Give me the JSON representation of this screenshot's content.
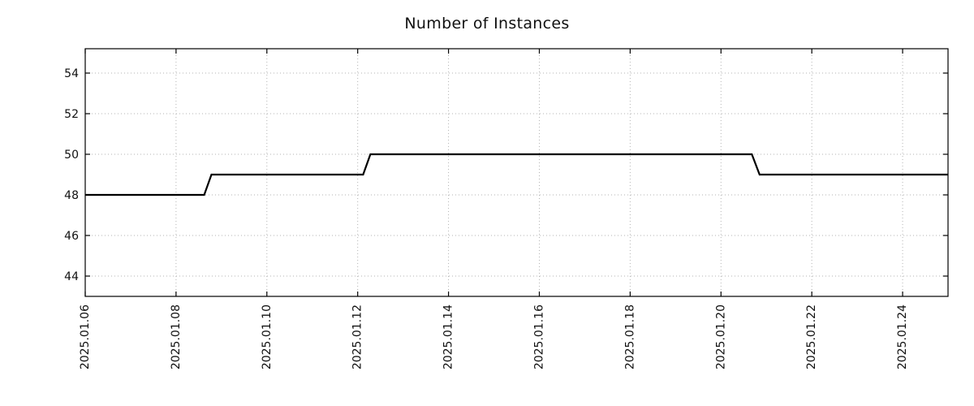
{
  "chart_data": {
    "type": "line",
    "title": "Number of Instances",
    "xlabel": "",
    "ylabel": "",
    "x_unit": "days offset from 2025.01.06",
    "xlim": [
      0,
      19
    ],
    "ylim": [
      43,
      55.2
    ],
    "grid": true,
    "grid_style": "dotted",
    "grid_color": "#b3b3b3",
    "line_color": "#000000",
    "line_width": 2.2,
    "background_color": "#ffffff",
    "border_color": "#000000",
    "y_ticks": [
      44,
      46,
      48,
      50,
      52,
      54
    ],
    "x_ticks": [
      {
        "pos": 0,
        "label": "2025.01.06"
      },
      {
        "pos": 2,
        "label": "2025.01.08"
      },
      {
        "pos": 4,
        "label": "2025.01.10"
      },
      {
        "pos": 6,
        "label": "2025.01.12"
      },
      {
        "pos": 8,
        "label": "2025.01.14"
      },
      {
        "pos": 10,
        "label": "2025.01.16"
      },
      {
        "pos": 12,
        "label": "2025.01.18"
      },
      {
        "pos": 14,
        "label": "2025.01.20"
      },
      {
        "pos": 16,
        "label": "2025.01.22"
      },
      {
        "pos": 18,
        "label": "2025.01.24"
      }
    ],
    "series": [
      {
        "name": "Number of Instances",
        "points": [
          [
            0.0,
            48
          ],
          [
            2.62,
            48
          ],
          [
            2.78,
            49
          ],
          [
            6.12,
            49
          ],
          [
            6.28,
            50
          ],
          [
            14.68,
            50
          ],
          [
            14.85,
            49
          ],
          [
            19.0,
            49
          ]
        ]
      }
    ]
  }
}
